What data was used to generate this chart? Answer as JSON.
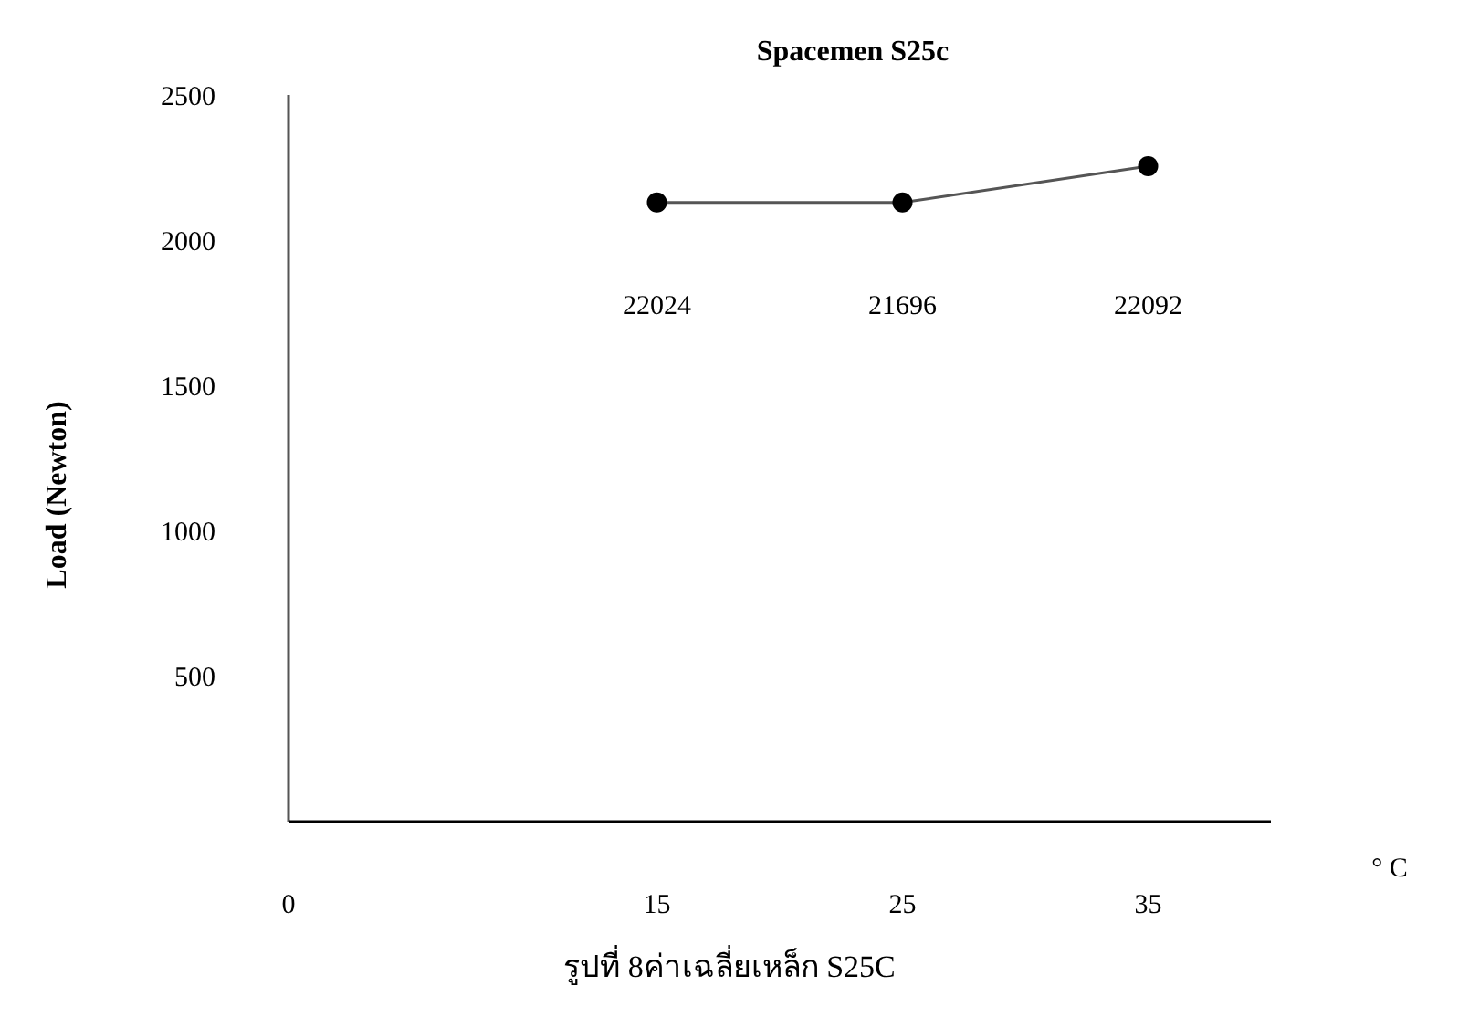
{
  "chart_data": {
    "type": "line",
    "title": "Spacemen S25c",
    "xlabel": "° C",
    "ylabel": "Load (Newton)",
    "x": [
      15,
      25,
      35
    ],
    "series": [
      {
        "color": "#000000",
        "values": [
          2130,
          2130,
          2255
        ]
      }
    ],
    "xlim": [
      0,
      40
    ],
    "xticks": [
      0,
      15,
      25,
      35
    ],
    "ylim": [
      0,
      2500
    ],
    "yticks": [
      500,
      1000,
      1500,
      2000,
      2500
    ],
    "grid": false,
    "marker": "circle",
    "line_style": "solid",
    "annotations": [
      "22024",
      "21696",
      "22092",
      "รูปที่  8ค่าเฉลี่ยเหล็ก S25C"
    ]
  }
}
